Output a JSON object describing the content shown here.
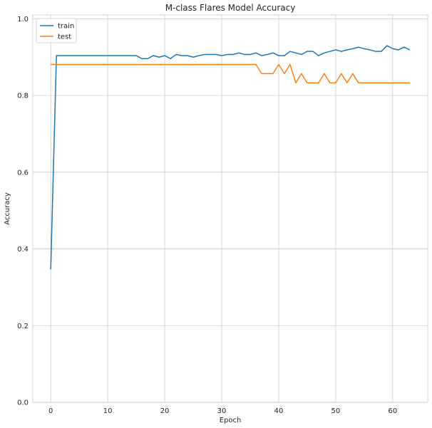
{
  "chart_data": {
    "type": "line",
    "title": "M-class Flares Model Accuracy",
    "xlabel": "Epoch",
    "ylabel": "Accuracy",
    "xlim": [
      -3.15,
      66.15
    ],
    "ylim": [
      0.0,
      1.01
    ],
    "xticks": [
      0,
      10,
      20,
      30,
      40,
      50,
      60
    ],
    "yticks": [
      0.0,
      0.2,
      0.4,
      0.6,
      0.8,
      1.0
    ],
    "xtick_labels": [
      "0",
      "10",
      "20",
      "30",
      "40",
      "50",
      "60"
    ],
    "ytick_labels": [
      "0.0",
      "0.2",
      "0.4",
      "0.6",
      "0.8",
      "1.0"
    ],
    "grid": true,
    "legend_position": "upper left",
    "series": [
      {
        "name": "train",
        "color": "#1f77b4",
        "x": [
          0,
          1,
          2,
          3,
          4,
          5,
          6,
          7,
          8,
          9,
          10,
          11,
          12,
          13,
          14,
          15,
          16,
          17,
          18,
          19,
          20,
          21,
          22,
          23,
          24,
          25,
          26,
          27,
          28,
          29,
          30,
          31,
          32,
          33,
          34,
          35,
          36,
          37,
          38,
          39,
          40,
          41,
          42,
          43,
          44,
          45,
          46,
          47,
          48,
          49,
          50,
          51,
          52,
          53,
          54,
          55,
          56,
          57,
          58,
          59,
          60,
          61,
          62,
          63
        ],
        "values": [
          0.347,
          0.904,
          0.904,
          0.904,
          0.904,
          0.904,
          0.904,
          0.904,
          0.904,
          0.904,
          0.904,
          0.904,
          0.904,
          0.904,
          0.904,
          0.904,
          0.896,
          0.896,
          0.904,
          0.9,
          0.904,
          0.896,
          0.907,
          0.904,
          0.904,
          0.9,
          0.904,
          0.907,
          0.907,
          0.907,
          0.904,
          0.907,
          0.907,
          0.911,
          0.907,
          0.907,
          0.911,
          0.904,
          0.907,
          0.911,
          0.904,
          0.904,
          0.915,
          0.911,
          0.907,
          0.915,
          0.915,
          0.904,
          0.911,
          0.915,
          0.919,
          0.915,
          0.919,
          0.922,
          0.926,
          0.922,
          0.919,
          0.915,
          0.915,
          0.93,
          0.922,
          0.919,
          0.926,
          0.919
        ]
      },
      {
        "name": "test",
        "color": "#ff7f0e",
        "x": [
          0,
          1,
          2,
          3,
          4,
          5,
          6,
          7,
          8,
          9,
          10,
          11,
          12,
          13,
          14,
          15,
          16,
          17,
          18,
          19,
          20,
          21,
          22,
          23,
          24,
          25,
          26,
          27,
          28,
          29,
          30,
          31,
          32,
          33,
          34,
          35,
          36,
          37,
          38,
          39,
          40,
          41,
          42,
          43,
          44,
          45,
          46,
          47,
          48,
          49,
          50,
          51,
          52,
          53,
          54,
          55,
          56,
          57,
          58,
          59,
          60,
          61,
          62,
          63
        ],
        "values": [
          0.881,
          0.881,
          0.881,
          0.881,
          0.881,
          0.881,
          0.881,
          0.881,
          0.881,
          0.881,
          0.881,
          0.881,
          0.881,
          0.881,
          0.881,
          0.881,
          0.881,
          0.881,
          0.881,
          0.881,
          0.881,
          0.881,
          0.881,
          0.881,
          0.881,
          0.881,
          0.881,
          0.881,
          0.881,
          0.881,
          0.881,
          0.881,
          0.881,
          0.881,
          0.881,
          0.881,
          0.881,
          0.857,
          0.857,
          0.857,
          0.881,
          0.857,
          0.881,
          0.833,
          0.857,
          0.833,
          0.833,
          0.833,
          0.857,
          0.833,
          0.833,
          0.857,
          0.833,
          0.857,
          0.833,
          0.833,
          0.833,
          0.833,
          0.833,
          0.833,
          0.833,
          0.833,
          0.833,
          0.833
        ]
      }
    ]
  }
}
